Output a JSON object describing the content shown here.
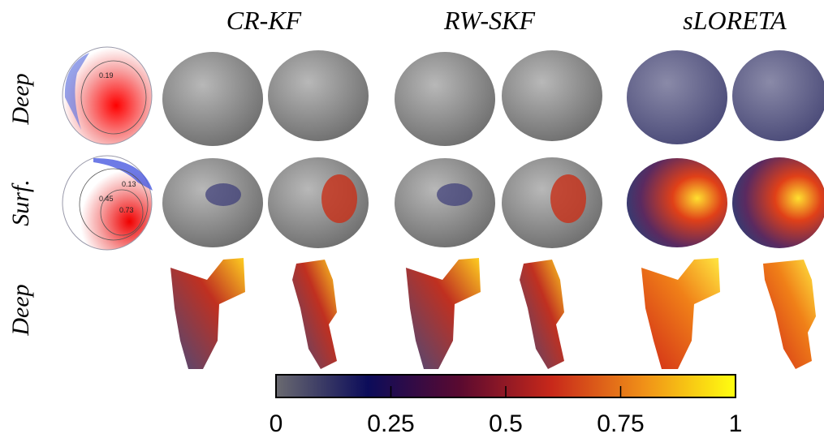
{
  "columns": [
    "CR-KF",
    "RW-SKF",
    "sLORETA"
  ],
  "rows": [
    "Deep",
    "Surf.",
    "Deep"
  ],
  "scalp_maps": [
    {
      "contour_labels": [
        "0.19"
      ]
    },
    {
      "contour_labels": [
        "0.73",
        "0.45",
        "0.13"
      ]
    }
  ],
  "colorbar": {
    "lim": [
      0,
      1
    ],
    "ticks": [
      0,
      0.25,
      0.5,
      0.75,
      1
    ],
    "colormap": [
      "#6a6a70",
      "#0c0c5a",
      "#5a0a30",
      "#c8281a",
      "#f09018",
      "#ffff10"
    ]
  }
}
